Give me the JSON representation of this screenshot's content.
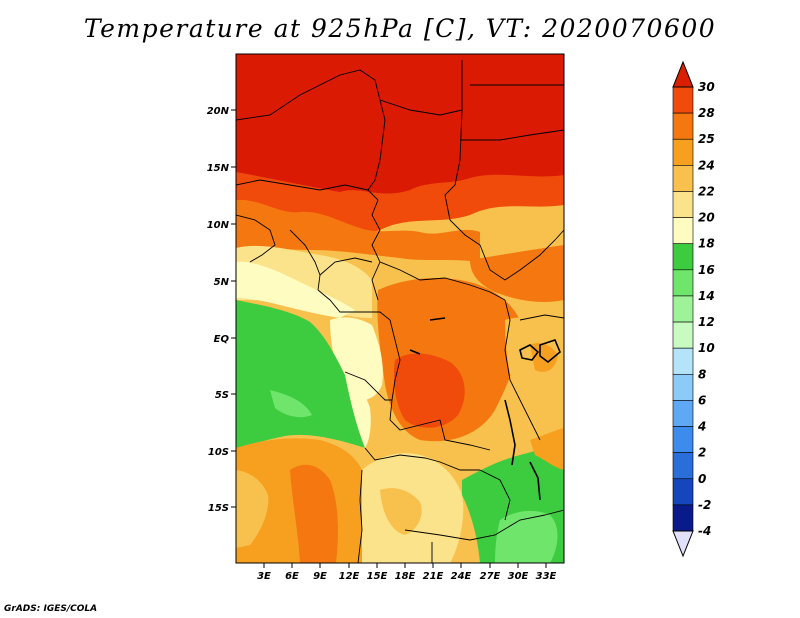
{
  "title": "Temperature at 925hPa [C], VT: 2020070600",
  "credit": "GrADS: IGES/COLA",
  "map": {
    "lat_labels": [
      "20N",
      "15N",
      "10N",
      "5N",
      "EQ",
      "5S",
      "10S",
      "15S"
    ],
    "lon_labels": [
      "3E",
      "6E",
      "9E",
      "12E",
      "15E",
      "18E",
      "21E",
      "24E",
      "27E",
      "30E",
      "33E"
    ]
  },
  "colorbar": {
    "levels": [
      "30",
      "28",
      "25",
      "24",
      "22",
      "20",
      "18",
      "16",
      "14",
      "12",
      "10",
      "8",
      "6",
      "4",
      "2",
      "0",
      "-2",
      "-4"
    ],
    "colors": [
      "#db1a04",
      "#f04b0a",
      "#f4780f",
      "#f7a01f",
      "#f8c14e",
      "#fbe38c",
      "#fefcc1",
      "#3dcb3f",
      "#6fe56c",
      "#9ef398",
      "#c7fbc1",
      "#b4e3fa",
      "#8ccaf7",
      "#5fa9f4",
      "#3d8ced",
      "#2a6ed9",
      "#1546bb",
      "#0a1a8a"
    ],
    "top_color": "#d82000",
    "bottom_color": "#e0e0fa"
  }
}
